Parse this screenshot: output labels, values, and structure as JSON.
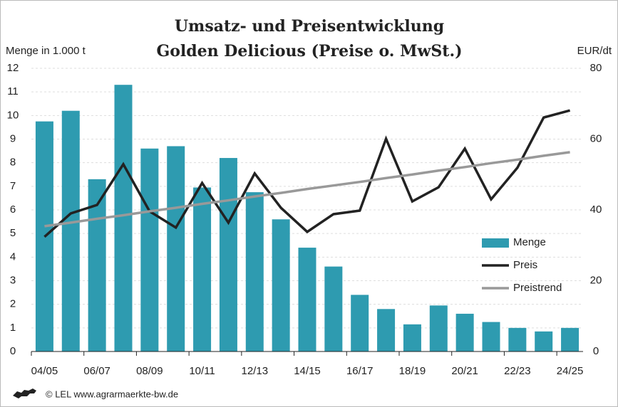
{
  "chart_data": {
    "type": "bar-line",
    "title": [
      "Umsatz- und Preisentwicklung",
      "Golden Delicious (Preise o. MwSt.)"
    ],
    "ylabel": "Menge in 1.000 t",
    "y2label": "EUR/dt",
    "source": "© LEL www.agrarmaerkte-bw.de",
    "categories": [
      "04/05",
      null,
      "06/07",
      null,
      "08/09",
      null,
      "10/11",
      null,
      "12/13",
      null,
      "14/15",
      null,
      "16/17",
      null,
      "18/19",
      null,
      "20/21",
      null,
      "22/23",
      null,
      "24/25"
    ],
    "series": [
      {
        "name": "Menge",
        "type": "bar",
        "color": "#2e9bb0",
        "axis": "y",
        "values": [
          9.75,
          10.2,
          7.3,
          11.3,
          8.6,
          8.7,
          6.95,
          8.2,
          6.75,
          5.6,
          4.4,
          3.6,
          2.4,
          1.8,
          1.15,
          1.95,
          1.6,
          1.25,
          1.0,
          0.85,
          1.0
        ]
      },
      {
        "name": "Preis",
        "type": "line",
        "color": "#222222",
        "axis": "y2",
        "values": [
          32.4,
          39,
          41.4,
          52.9,
          39.6,
          35,
          47.6,
          36.4,
          50.3,
          40.6,
          33.8,
          38.8,
          39.8,
          60.1,
          42.4,
          46.4,
          57.3,
          43,
          51.9,
          66.1,
          68.1
        ]
      },
      {
        "name": "Preistrend",
        "type": "line",
        "color": "#999999",
        "axis": "y2",
        "values": [
          35.4,
          36.4,
          37.5,
          38.5,
          39.6,
          40.6,
          41.7,
          42.7,
          43.8,
          44.8,
          45.9,
          46.9,
          47.9,
          49.0,
          50.0,
          51.1,
          52.1,
          53.2,
          54.2,
          55.3,
          56.3
        ]
      }
    ],
    "ylim": [
      0,
      12
    ],
    "yticks": [
      0,
      1,
      2,
      3,
      4,
      5,
      6,
      7,
      8,
      9,
      10,
      11,
      12
    ],
    "y2lim": [
      0,
      80
    ],
    "y2ticks": [
      0,
      20,
      40,
      60,
      80
    ],
    "grid": true,
    "legend": "right"
  }
}
